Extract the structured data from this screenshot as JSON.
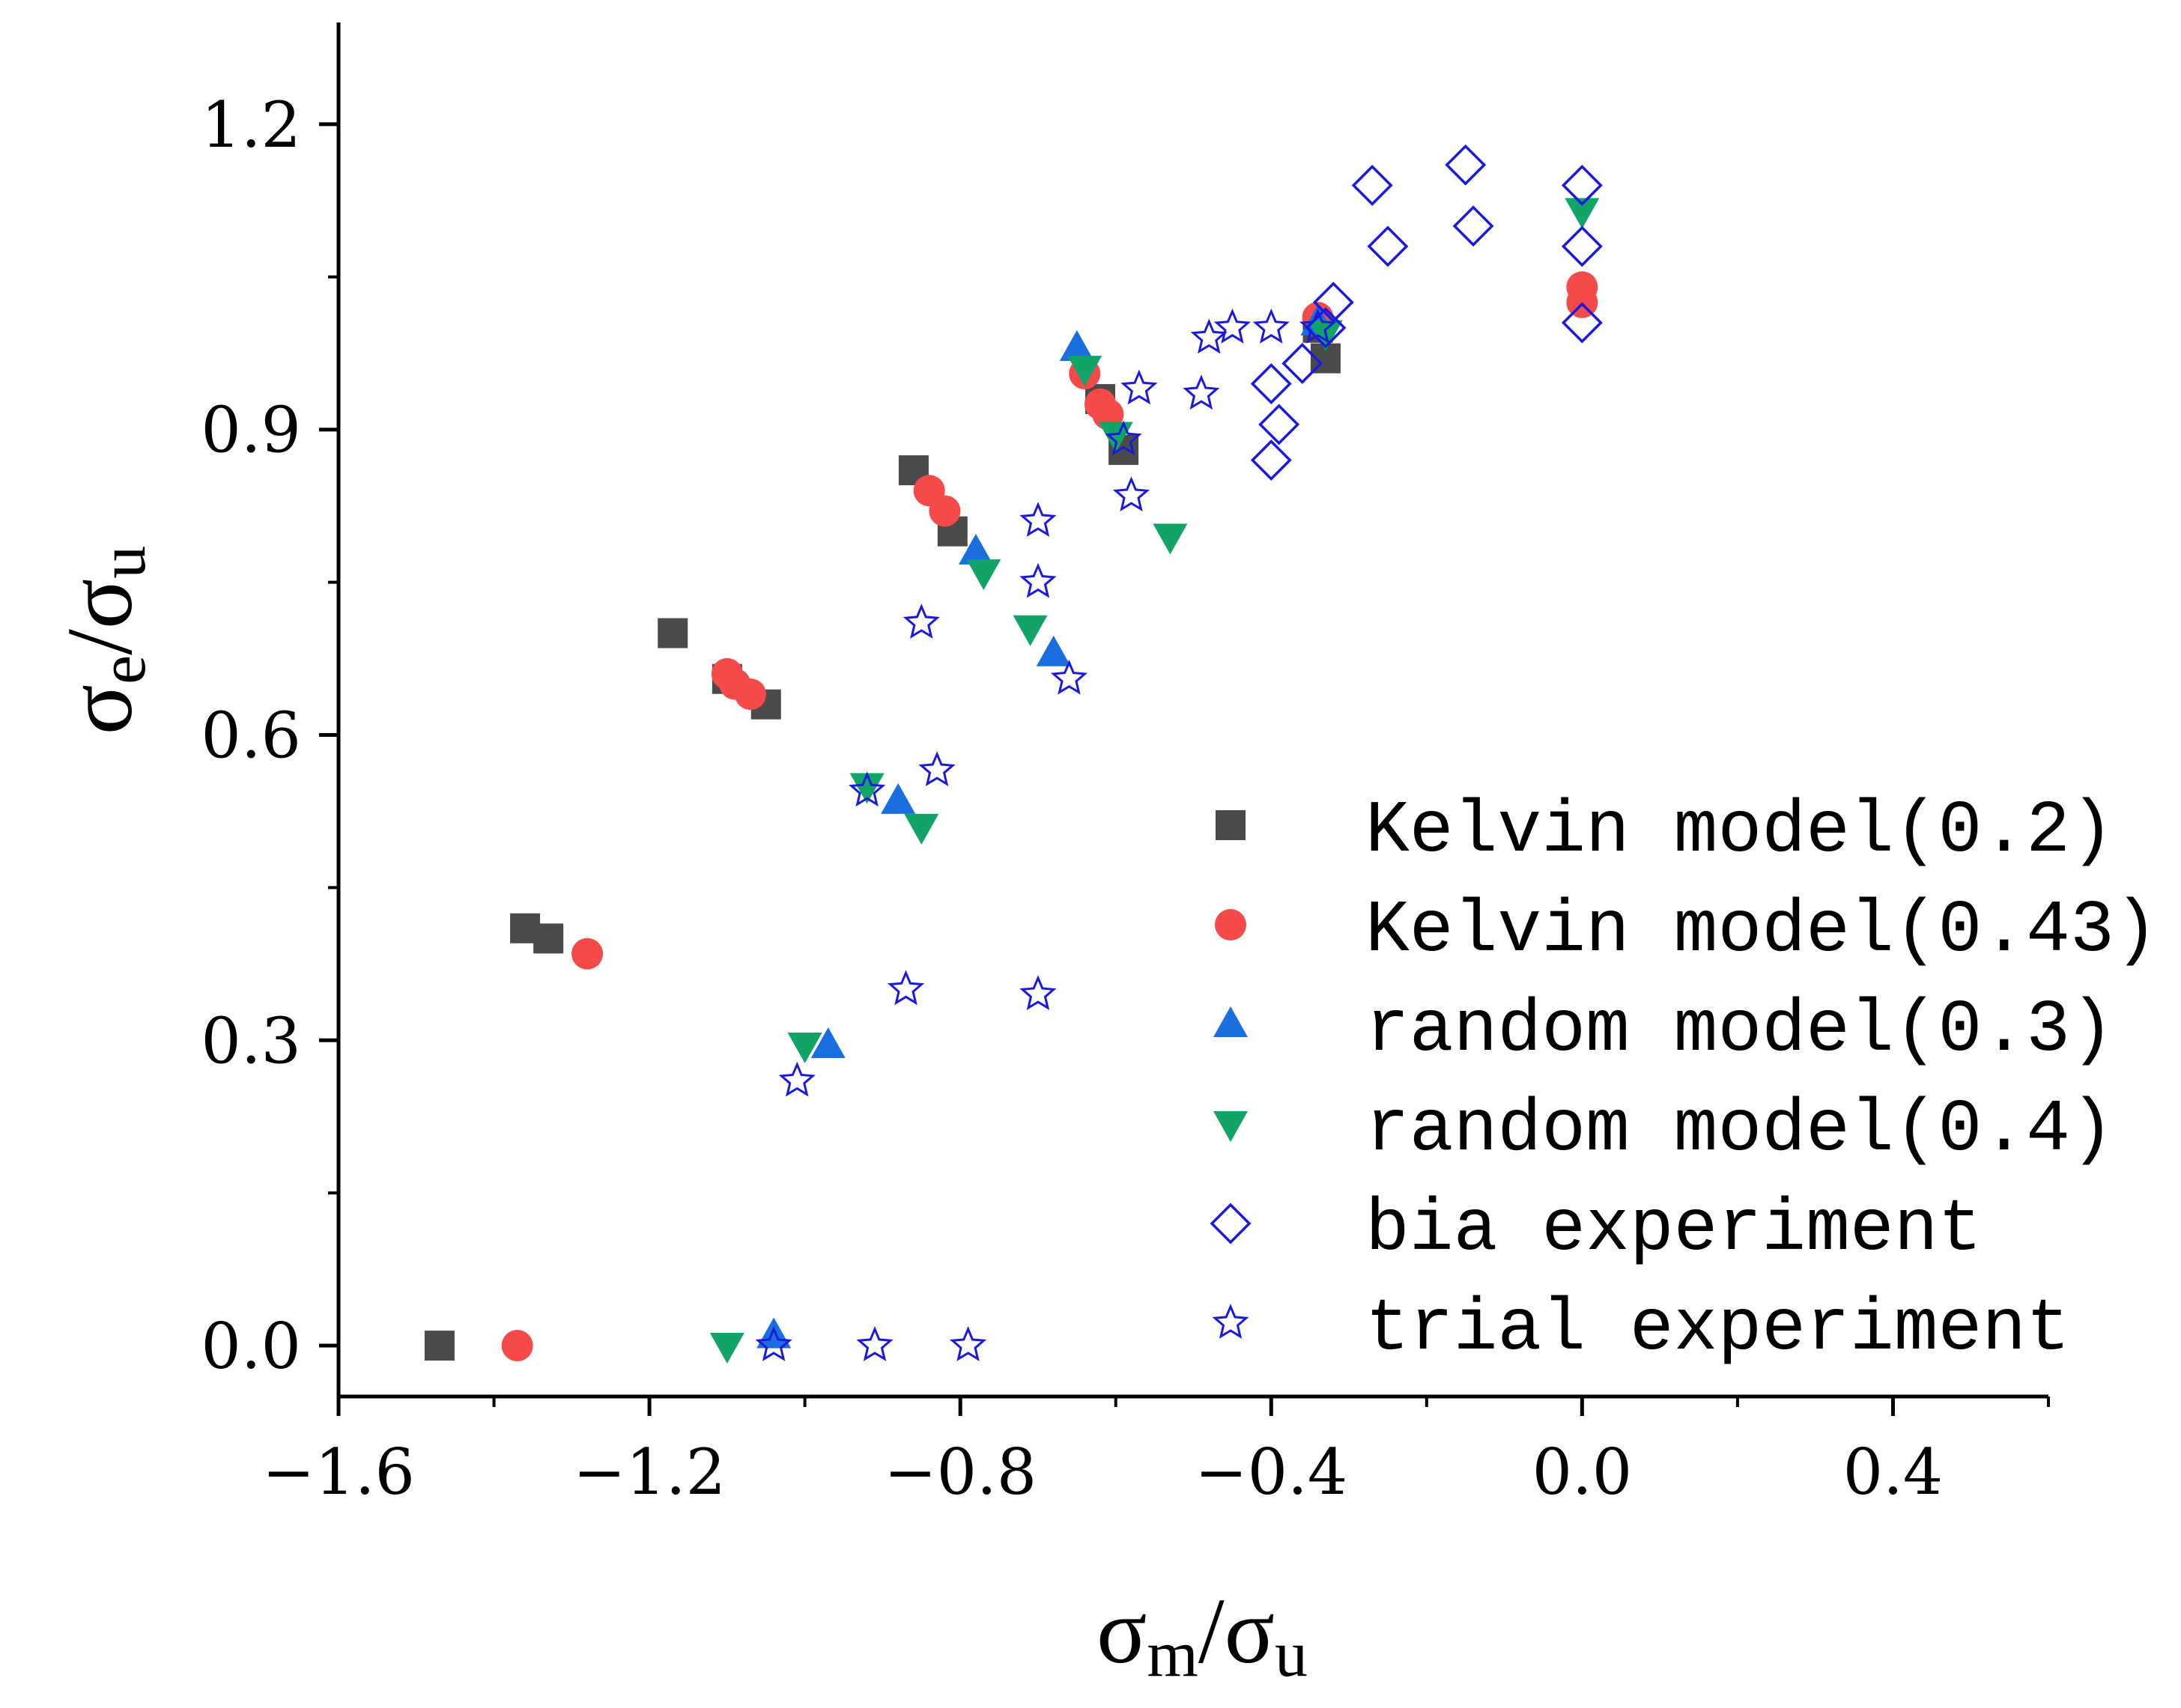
{
  "chart_data": {
    "type": "scatter",
    "title": "",
    "xlabel": {
      "symbol": "σ",
      "sub": "m",
      "slash": "/",
      "symbol2": "σ",
      "sub2": "u"
    },
    "ylabel": {
      "symbol": "σ",
      "sub": "e",
      "slash": "/",
      "symbol2": "σ",
      "sub2": "u"
    },
    "xlim": [
      -1.6,
      0.6
    ],
    "ylim": [
      -0.05,
      1.3
    ],
    "xticks": [
      -1.6,
      -1.2,
      -0.8,
      -0.4,
      0.0,
      0.4
    ],
    "xtick_labels": [
      "−1.6",
      "−1.2",
      "−0.8",
      "−0.4",
      "0.0",
      "0.4"
    ],
    "yticks": [
      0.0,
      0.3,
      0.6,
      0.9,
      1.2
    ],
    "ytick_labels": [
      "0.0",
      "0.3",
      "0.6",
      "0.9",
      "1.2"
    ],
    "legend_position": "bottom-right",
    "series": [
      {
        "name": "Kelvin model(0.2)",
        "marker": "square",
        "color": "#4a4a4a",
        "points": [
          [
            -1.47,
            0.0
          ],
          [
            -1.36,
            0.41
          ],
          [
            -1.33,
            0.4
          ],
          [
            -1.17,
            0.7
          ],
          [
            -1.1,
            0.655
          ],
          [
            -1.05,
            0.63
          ],
          [
            -0.86,
            0.86
          ],
          [
            -0.81,
            0.8
          ],
          [
            -0.62,
            0.93
          ],
          [
            -0.59,
            0.88
          ],
          [
            -0.33,
            0.97
          ],
          [
            -0.34,
            1.0
          ]
        ]
      },
      {
        "name": "Kelvin model(0.43)",
        "marker": "circle",
        "color": "#f64a4a",
        "points": [
          [
            -1.37,
            0.0
          ],
          [
            -1.28,
            0.385
          ],
          [
            -1.1,
            0.66
          ],
          [
            -1.09,
            0.65
          ],
          [
            -1.07,
            0.64
          ],
          [
            -0.84,
            0.84
          ],
          [
            -0.82,
            0.82
          ],
          [
            -0.64,
            0.955
          ],
          [
            -0.62,
            0.925
          ],
          [
            -0.61,
            0.915
          ],
          [
            -0.34,
            1.01
          ],
          [
            0.0,
            1.04
          ],
          [
            0.0,
            1.025
          ]
        ]
      },
      {
        "name": "random model(0.3)",
        "marker": "triangle-up",
        "color": "#1a6fe0",
        "points": [
          [
            -1.04,
            0.01
          ],
          [
            -0.97,
            0.295
          ],
          [
            -0.88,
            0.535
          ],
          [
            -0.78,
            0.78
          ],
          [
            -0.68,
            0.68
          ],
          [
            -0.65,
            0.98
          ],
          [
            -0.34,
            1.005
          ]
        ]
      },
      {
        "name": "random model(0.4)",
        "marker": "triangle-down",
        "color": "#10a466",
        "points": [
          [
            -1.1,
            0.0
          ],
          [
            -1.0,
            0.295
          ],
          [
            -0.92,
            0.55
          ],
          [
            -0.85,
            0.51
          ],
          [
            -0.77,
            0.76
          ],
          [
            -0.71,
            0.705
          ],
          [
            -0.64,
            0.96
          ],
          [
            -0.6,
            0.895
          ],
          [
            -0.53,
            0.795
          ],
          [
            -0.33,
            0.995
          ],
          [
            0.0,
            1.115
          ]
        ]
      },
      {
        "name": "bia experiment",
        "marker": "diamond-open",
        "color": "#1a1adf",
        "points": [
          [
            -0.27,
            1.14
          ],
          [
            -0.15,
            1.16
          ],
          [
            -0.14,
            1.1
          ],
          [
            -0.25,
            1.08
          ],
          [
            -0.32,
            1.025
          ],
          [
            -0.33,
            1.0
          ],
          [
            -0.36,
            0.965
          ],
          [
            -0.4,
            0.945
          ],
          [
            -0.39,
            0.905
          ],
          [
            -0.4,
            0.87
          ],
          [
            0.0,
            1.14
          ],
          [
            0.0,
            1.08
          ],
          [
            0.0,
            1.005
          ]
        ]
      },
      {
        "name": "trial experiment",
        "marker": "star-open",
        "color": "#1a1adf",
        "points": [
          [
            -1.04,
            0.0
          ],
          [
            -0.91,
            0.0
          ],
          [
            -0.79,
            0.0
          ],
          [
            -1.01,
            0.26
          ],
          [
            -0.87,
            0.35
          ],
          [
            -0.7,
            0.345
          ],
          [
            -0.92,
            0.545
          ],
          [
            -0.83,
            0.565
          ],
          [
            -0.85,
            0.71
          ],
          [
            -0.7,
            0.81
          ],
          [
            -0.7,
            0.75
          ],
          [
            -0.66,
            0.655
          ],
          [
            -0.59,
            0.89
          ],
          [
            -0.58,
            0.835
          ],
          [
            -0.57,
            0.94
          ],
          [
            -0.49,
            0.935
          ],
          [
            -0.48,
            0.99
          ],
          [
            -0.45,
            1.0
          ],
          [
            -0.4,
            1.0
          ],
          [
            -0.34,
            1.0
          ]
        ]
      }
    ]
  }
}
